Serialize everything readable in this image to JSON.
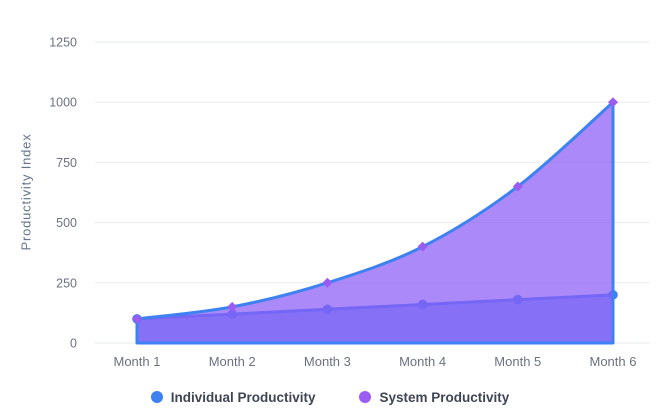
{
  "chart_data": {
    "type": "area",
    "title": "",
    "xlabel": "",
    "ylabel": "Productivity Index",
    "categories": [
      "Month 1",
      "Month 2",
      "Month 3",
      "Month 4",
      "Month 5",
      "Month 6"
    ],
    "series": [
      {
        "name": "Individual Productivity",
        "color": "#3d82f0",
        "marker": "circle",
        "values": [
          100,
          120,
          140,
          160,
          180,
          200
        ]
      },
      {
        "name": "System Productivity",
        "color": "#9b5cf4",
        "marker": "diamond",
        "values": [
          100,
          150,
          250,
          400,
          650,
          1000
        ]
      }
    ],
    "yticks": [
      0,
      250,
      500,
      750,
      1000,
      1250
    ],
    "ylim": [
      0,
      1250
    ],
    "grid": true,
    "legend_position": "bottom"
  },
  "colors": {
    "blue": "#3d82f0",
    "purple": "#9b5cf4",
    "purple_fill": "rgba(139,92,246,0.72)",
    "blue_fill": "rgba(61,130,240,0.7)",
    "grid": "#e9ebef",
    "tick_text": "#6b7280",
    "axis_title": "#64748b",
    "legend_text": "#3f4653",
    "background": "#ffffff"
  }
}
